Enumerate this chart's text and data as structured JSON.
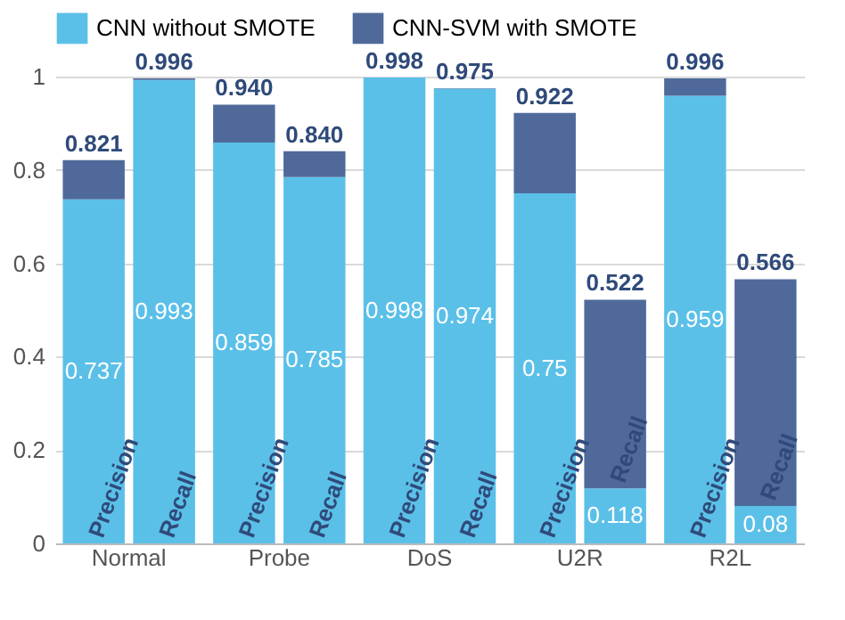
{
  "chart_data": {
    "type": "bar",
    "stacked": true,
    "categories": [
      "Precision",
      "Recall",
      "Precision",
      "Recall",
      "Precision",
      "Recall",
      "Precision",
      "Recall",
      "Precision",
      "Recall"
    ],
    "annotations": [
      "Normal",
      "Probe",
      "DoS",
      "U2R",
      "R2L"
    ],
    "series": [
      {
        "name": "CNN without SMOTE",
        "color": "#5bc0e8",
        "values": [
          0.737,
          0.993,
          0.859,
          0.785,
          0.998,
          0.974,
          0.75,
          0.118,
          0.959,
          0.08
        ],
        "value_labels": [
          "0.737",
          "0.993",
          "0.859",
          "0.785",
          "0.998",
          "0.974",
          "0.75",
          "0.118",
          "0.959",
          "0.08"
        ]
      },
      {
        "name": "CNN-SVM with SMOTE",
        "color": "#4f6a9a",
        "values": [
          0.084,
          0.003,
          0.081,
          0.055,
          0,
          0.001,
          0.172,
          0.404,
          0.037,
          0.486
        ]
      }
    ],
    "totals": [
      "0.821",
      "0.996",
      "0.940",
      "0.840",
      "0.998",
      "0.975",
      "0.922",
      "0.522",
      "0.996",
      "0.566"
    ],
    "ylim": [
      0,
      1
    ],
    "yticks": [
      0,
      0.2,
      0.4,
      0.6,
      0.8,
      1
    ],
    "grid": "y",
    "legend": "top"
  }
}
